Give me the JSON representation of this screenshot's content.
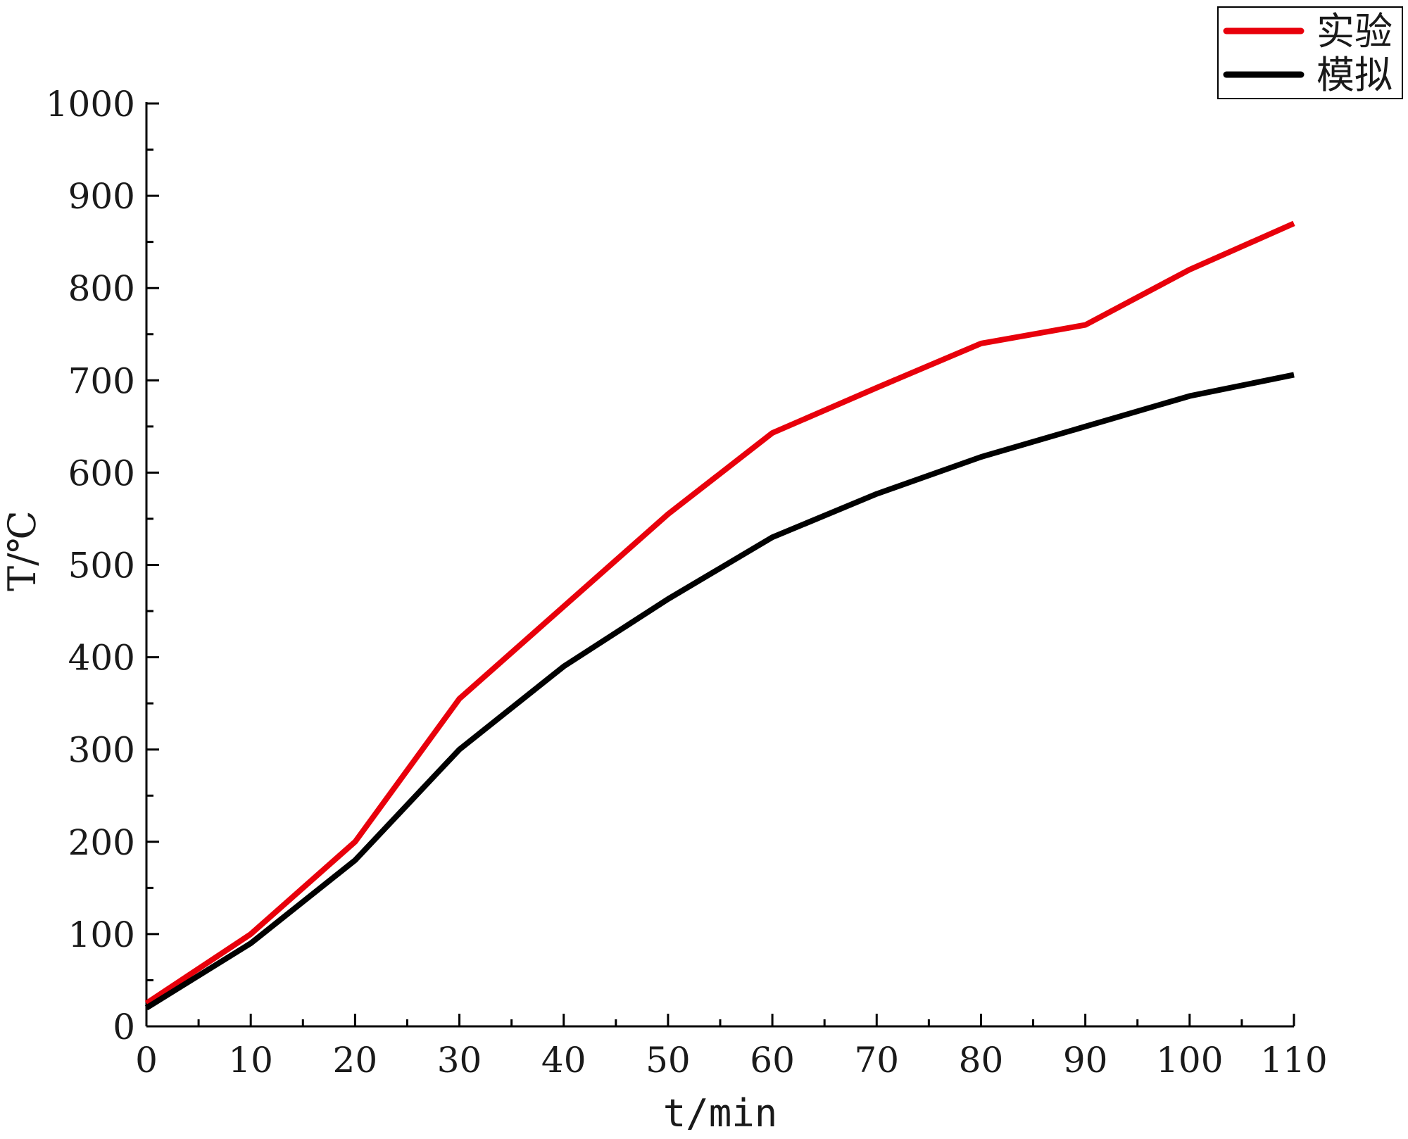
{
  "chart_data": {
    "type": "line",
    "title": "",
    "xlabel": "t/min",
    "ylabel": "T/℃",
    "xlim": [
      0,
      110
    ],
    "ylim": [
      0,
      1000
    ],
    "x_ticks": [
      0,
      10,
      20,
      30,
      40,
      50,
      60,
      70,
      80,
      90,
      100,
      110
    ],
    "y_ticks": [
      0,
      100,
      200,
      300,
      400,
      500,
      600,
      700,
      800,
      900,
      1000
    ],
    "x_tick_labels": [
      "0",
      "10",
      "20",
      "30",
      "40",
      "50",
      "60",
      "70",
      "80",
      "90",
      "100",
      "110"
    ],
    "y_tick_labels": [
      "0",
      "100",
      "200",
      "300",
      "400",
      "500",
      "600",
      "700",
      "800",
      "900",
      "1000"
    ],
    "grid": false,
    "legend_position": "top-right",
    "series": [
      {
        "name": "实验",
        "color": "#e8000b",
        "x": [
          0,
          10,
          20,
          30,
          40,
          50,
          60,
          70,
          80,
          90,
          100,
          110
        ],
        "y": [
          25,
          100,
          200,
          355,
          455,
          555,
          643,
          692,
          740,
          760,
          820,
          870
        ]
      },
      {
        "name": "模拟",
        "color": "#000000",
        "x": [
          0,
          10,
          20,
          30,
          40,
          50,
          60,
          70,
          80,
          90,
          100,
          110
        ],
        "y": [
          20,
          90,
          180,
          300,
          390,
          463,
          530,
          577,
          617,
          650,
          683,
          706
        ]
      }
    ]
  }
}
